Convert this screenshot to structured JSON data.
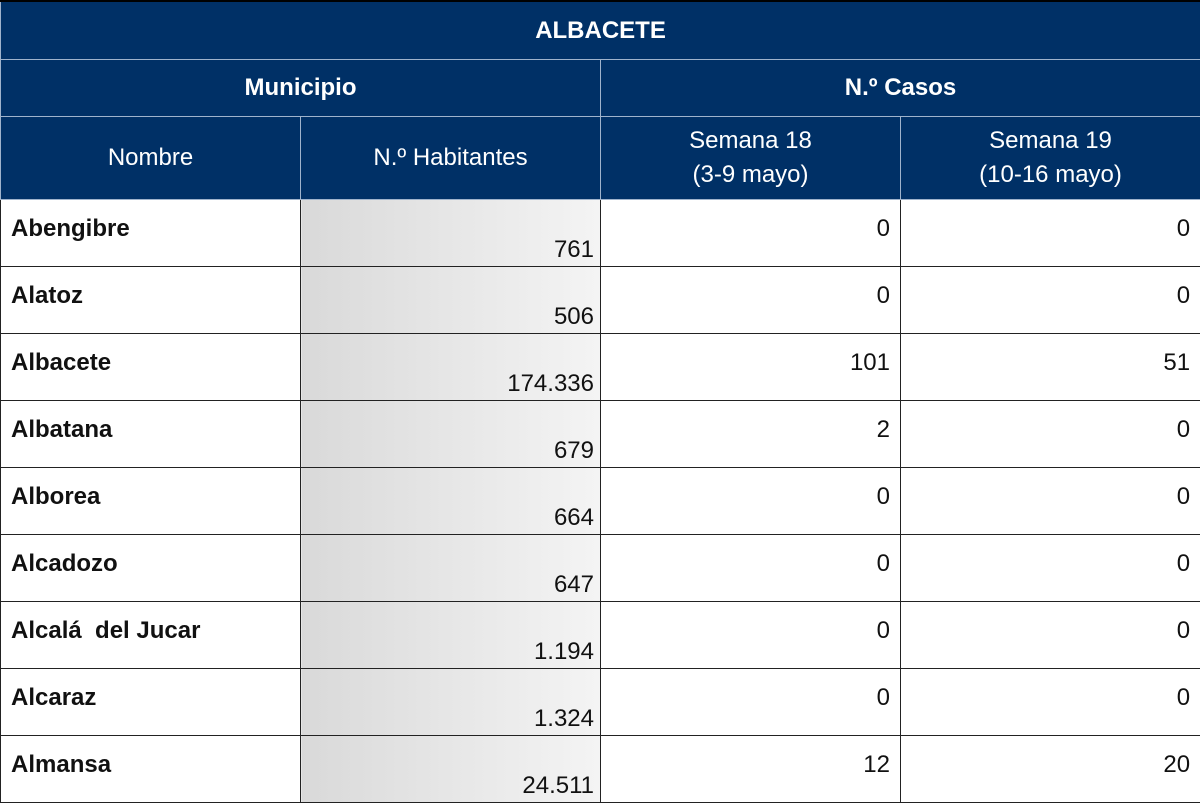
{
  "table": {
    "title": "ALBACETE",
    "group_headers": {
      "municipio": "Municipio",
      "casos": "N.º Casos"
    },
    "sub_headers": {
      "nombre": "Nombre",
      "habitantes": "N.º Habitantes",
      "semana18_line1": "Semana 18",
      "semana18_line2": "(3-9 mayo)",
      "semana19_line1": "Semana 19",
      "semana19_line2": "(10-16 mayo)"
    },
    "rows": [
      {
        "nombre": "Abengibre",
        "habitantes": "761",
        "semana18": "0",
        "semana19": "0"
      },
      {
        "nombre": "Alatoz",
        "habitantes": "506",
        "semana18": "0",
        "semana19": "0"
      },
      {
        "nombre": "Albacete",
        "habitantes": "174.336",
        "semana18": "101",
        "semana19": "51"
      },
      {
        "nombre": "Albatana",
        "habitantes": "679",
        "semana18": "2",
        "semana19": "0"
      },
      {
        "nombre": "Alborea",
        "habitantes": "664",
        "semana18": "0",
        "semana19": "0"
      },
      {
        "nombre": "Alcadozo",
        "habitantes": "647",
        "semana18": "0",
        "semana19": "0"
      },
      {
        "nombre": "Alcalá  del Jucar",
        "habitantes": "1.194",
        "semana18": "0",
        "semana19": "0"
      },
      {
        "nombre": "Alcaraz",
        "habitantes": "1.324",
        "semana18": "0",
        "semana19": "0"
      },
      {
        "nombre": "Almansa",
        "habitantes": "24.511",
        "semana18": "12",
        "semana19": "20"
      }
    ]
  },
  "colors": {
    "header_bg": "#003066",
    "header_text": "#ffffff",
    "population_cell_bg": "#e6e6e6"
  }
}
